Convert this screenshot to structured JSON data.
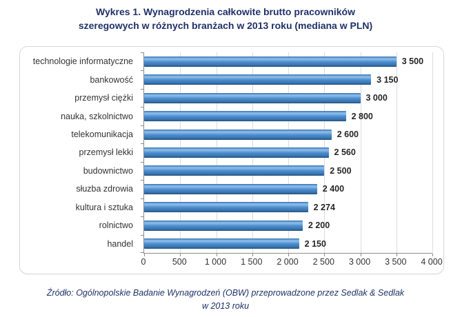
{
  "header": {
    "title_line1": "Wykres 1. Wynagrodzenia całkowite brutto pracowników",
    "title_line2": "szeregowych w różnych branżach w 2013 roku (mediana w PLN)"
  },
  "footer": {
    "line1": "Źródło: Ogólnopolskie Badanie Wynagrodzeń (OBW) przeprowadzone przez Sedlak & Sedlak",
    "line2": "w 2013 roku"
  },
  "chart_data": {
    "type": "bar",
    "orientation": "horizontal",
    "title": "Wykres 1. Wynagrodzenia całkowite brutto pracowników szeregowych w różnych branżach w 2013 roku (mediana w PLN)",
    "source": "Źródło: Ogólnopolskie Badanie Wynagrodzeń (OBW) przeprowadzone przez Sedlak & Sedlak w 2013 roku",
    "unit": "PLN",
    "categories": [
      "technologie informatyczne",
      "bankowość",
      "przemysł ciężki",
      "nauka, szkolnictwo",
      "telekomunikacja",
      "przemysł lekki",
      "budownictwo",
      "słuzba zdrowia",
      "kultura i sztuka",
      "rolnictwo",
      "handel"
    ],
    "values": [
      3500,
      3150,
      3000,
      2800,
      2600,
      2560,
      2500,
      2400,
      2274,
      2200,
      2150
    ],
    "value_labels": [
      "3 500",
      "3 150",
      "3 000",
      "2 800",
      "2 600",
      "2 560",
      "2 500",
      "2 400",
      "2 274",
      "2 200",
      "2 150"
    ],
    "xlim": [
      0,
      4000
    ],
    "x_ticks": [
      0,
      500,
      1000,
      1500,
      2000,
      2500,
      3000,
      3500,
      4000
    ],
    "x_tick_labels": [
      "0",
      "500",
      "1 000",
      "1 500",
      "2 000",
      "2 500",
      "3 000",
      "3 500",
      "4 000"
    ],
    "grid": true,
    "legend": "none",
    "colors": {
      "title_text": "#203168",
      "bar_main": "#4F8DCE",
      "bar_highlight": "#8FBFEB",
      "bar_dark": "#27537F",
      "gridline": "#DCDCDC",
      "axis_line": "#8C8C8C",
      "label_text": "#333333",
      "frame_border": "#D9D9D9"
    }
  }
}
